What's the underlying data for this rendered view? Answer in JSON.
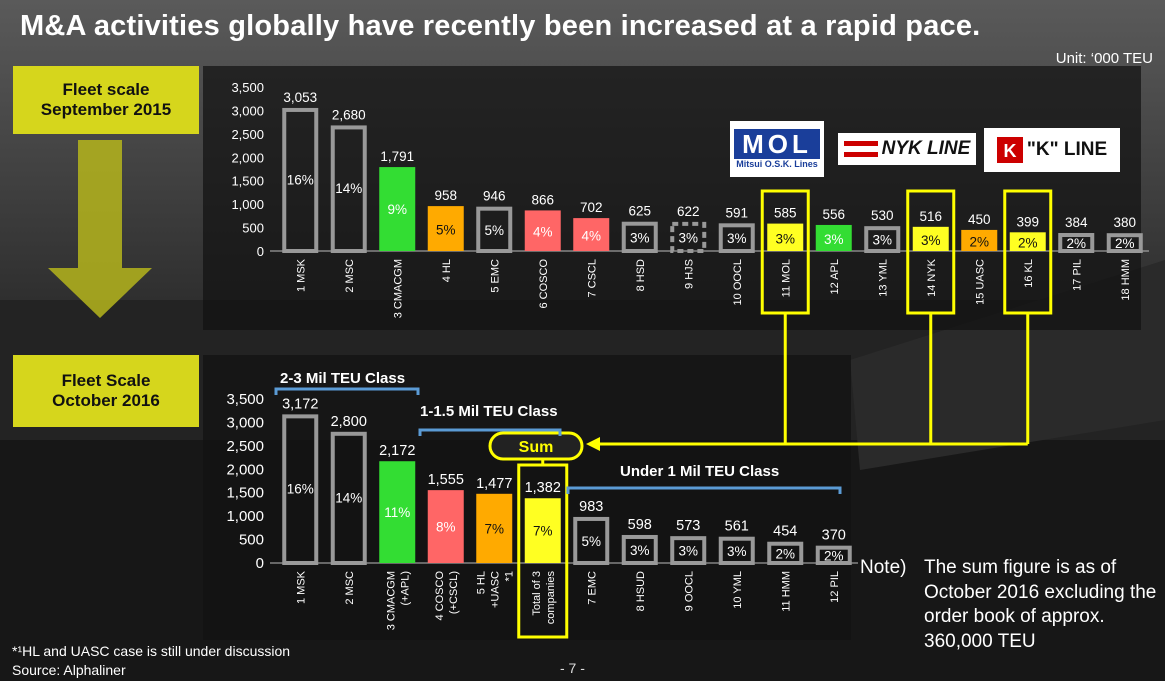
{
  "title": "M&A activities globally have recently been increased at a rapid pace.",
  "unit": "Unit: ‘000 TEU",
  "box1": {
    "line1": "Fleet scale",
    "line2": "September 2015"
  },
  "box2": {
    "line1": "Fleet Scale",
    "line2": "October 2016"
  },
  "sum_label": "Sum",
  "logos": {
    "mol": "MOL",
    "mol_sub": "Mitsui O.S.K. Lines",
    "nyk": "NYK LINE",
    "kline": "\"K\" LINE"
  },
  "footnote1": "*¹HL and UASC case is still under discussion",
  "footnote2": "Source: Alphaliner",
  "page_number": "- 7 -",
  "note": {
    "label": "Note)",
    "text": "The sum figure is as of October 2016 excluding the order book of approx. 360,000 TEU"
  },
  "colors": {
    "green": "#33dd33",
    "orange": "#ffaa00",
    "red": "#ff6666",
    "yellow": "#ffff22",
    "outline": "#999999",
    "highlight": "#ffff00",
    "bracket": "#5b9bd5",
    "box": "#d6d61c"
  },
  "chart_data": [
    {
      "type": "bar",
      "title": "Fleet scale September 2015",
      "ylim": [
        0,
        3500
      ],
      "yticks": [
        "0",
        "500",
        "1,000",
        "1,500",
        "2,000",
        "2,500",
        "3,000",
        "3,500"
      ],
      "categories": [
        "1 MSK",
        "2 MSC",
        "3 CMACGM",
        "4 HL",
        "5 EMC",
        "6 COSCO",
        "7 CSCL",
        "8 HSD",
        "9 HJS",
        "10 OOCL",
        "11 MOL",
        "12 APL",
        "13 YML",
        "14 NYK",
        "15 UASC",
        "16 KL",
        "17 PIL",
        "18 HMM"
      ],
      "values": [
        3053,
        2680,
        1791,
        958,
        946,
        866,
        702,
        625,
        622,
        591,
        585,
        556,
        530,
        516,
        450,
        399,
        384,
        380
      ],
      "value_labels": [
        "3,053",
        "2,680",
        "1,791",
        "958",
        "946",
        "866",
        "702",
        "625",
        "622",
        "591",
        "585",
        "556",
        "530",
        "516",
        "450",
        "399",
        "384",
        "380"
      ],
      "shares": [
        "16%",
        "14%",
        "9%",
        "5%",
        "5%",
        "4%",
        "4%",
        "3%",
        "3%",
        "3%",
        "3%",
        "3%",
        "3%",
        "3%",
        "2%",
        "2%",
        "2%",
        "2%"
      ],
      "styles": [
        "outline",
        "outline",
        "green",
        "orange",
        "outline",
        "red",
        "red",
        "outline",
        "dashed",
        "outline",
        "yellow",
        "green",
        "outline",
        "yellow",
        "orange",
        "yellow",
        "outline",
        "outline"
      ],
      "highlighted": [
        "11 MOL",
        "14 NYK",
        "16 KL"
      ]
    },
    {
      "type": "bar",
      "title": "Fleet Scale October 2016",
      "ylim": [
        0,
        3500
      ],
      "yticks": [
        "0",
        "500",
        "1,000",
        "1,500",
        "2,000",
        "2,500",
        "3,000",
        "3,500"
      ],
      "categories": [
        "1 MSK",
        "2 MSC",
        "3 CMACGM (+APL)",
        "4 COSCO (+CSCL)",
        "5 HL +UASC *1",
        "Total of 3 companies",
        "7 EMC",
        "8 HSUD",
        "9 OOCL",
        "10 YML",
        "11 HMM",
        "12 PIL"
      ],
      "values": [
        3172,
        2800,
        2172,
        1555,
        1477,
        1382,
        983,
        598,
        573,
        561,
        454,
        370
      ],
      "value_labels": [
        "3,172",
        "2,800",
        "2,172",
        "1,555",
        "1,477",
        "1,382",
        "983",
        "598",
        "573",
        "561",
        "454",
        "370"
      ],
      "shares": [
        "16%",
        "14%",
        "11%",
        "8%",
        "7%",
        "7%",
        "5%",
        "3%",
        "3%",
        "3%",
        "2%",
        "2%"
      ],
      "styles": [
        "outline",
        "outline",
        "green",
        "red",
        "orange",
        "yellow",
        "outline",
        "outline",
        "outline",
        "outline",
        "outline",
        "outline"
      ],
      "highlighted": [
        "Total of 3 companies"
      ],
      "class_brackets": [
        "2-3 Mil TEU Class",
        "1-1.5 Mil TEU Class",
        "Under 1 Mil TEU Class"
      ]
    }
  ]
}
